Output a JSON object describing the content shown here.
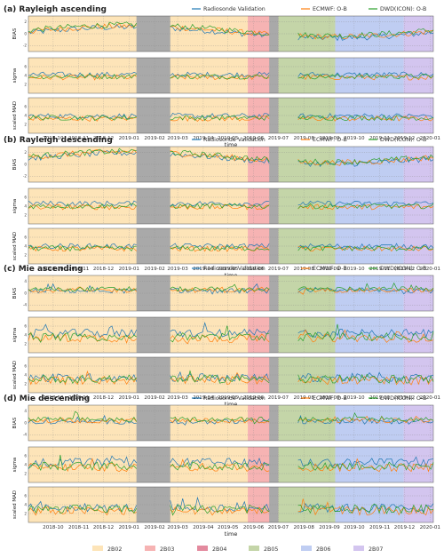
{
  "figure": {
    "panels": [
      {
        "id": "a",
        "title": "(a) Rayleigh ascending"
      },
      {
        "id": "b",
        "title": "(b) Rayleigh descending"
      },
      {
        "id": "c",
        "title": "(c) Mie ascending"
      },
      {
        "id": "d",
        "title": "(d) Mie descending"
      }
    ],
    "series_legend": [
      {
        "name": "Radiosonde Validation",
        "color": "#1f77b4"
      },
      {
        "name": "ECMWF: O-B",
        "color": "#ff7f0e"
      },
      {
        "name": "DWD(ICON): O-B",
        "color": "#2ca02c"
      }
    ],
    "phases": [
      {
        "name": "2B02",
        "start": "2018-09-01",
        "end": "2019-05-25",
        "color": "#fde4b8"
      },
      {
        "name": "2B03",
        "start": "2019-05-25",
        "end": "2019-06-20",
        "color": "#f6b3b3"
      },
      {
        "name": "2B04",
        "start": "2019-06-20",
        "end": "2019-07-01",
        "color": "#e38a9e"
      },
      {
        "name": "2B05",
        "start": "2019-07-01",
        "end": "2019-09-08",
        "color": "#c4d5a8"
      },
      {
        "name": "2B06",
        "start": "2019-09-08",
        "end": "2019-11-30",
        "color": "#bfcdf2"
      },
      {
        "name": "2B07",
        "start": "2019-11-30",
        "end": "2020-01-05",
        "color": "#d3c5ef"
      }
    ],
    "gaps": [
      {
        "start": "2019-01-10",
        "end": "2019-02-20"
      },
      {
        "start": "2019-06-20",
        "end": "2019-07-01"
      }
    ],
    "x_axis": {
      "label": "time",
      "ticks": [
        "2018-10",
        "2018-11",
        "2018-12",
        "2019-01",
        "2019-02",
        "2019-03",
        "2019-04",
        "2019-05",
        "2019-06",
        "2019-07",
        "2019-08",
        "2019-09",
        "2019-10",
        "2019-11",
        "2019-12",
        "2020-01"
      ]
    },
    "sub_axes": [
      {
        "label": "BIAS"
      },
      {
        "label": "sigma"
      },
      {
        "label": "scaled MAD"
      }
    ]
  },
  "chart_data": [
    {
      "type": "line",
      "title": "(a) Rayleigh ascending",
      "xlabel": "time",
      "sublabels": [
        "BIAS",
        "sigma",
        "scaled MAD"
      ],
      "ylims": [
        [
          -3,
          3
        ],
        [
          0,
          8
        ],
        [
          0,
          8
        ]
      ],
      "yticks": [
        [
          -2,
          0,
          2
        ],
        [
          2,
          4,
          6
        ],
        [
          2,
          4,
          6
        ]
      ],
      "baselines": [
        [
          0.2,
          0.4,
          0.6
        ],
        [
          4.2,
          3.6,
          3.8
        ],
        [
          3.9,
          3.3,
          3.5
        ]
      ],
      "series": [
        "Radiosonde Validation",
        "ECMWF: O-B",
        "DWD(ICON): O-B"
      ]
    },
    {
      "type": "line",
      "title": "(b) Rayleigh descending",
      "xlabel": "time",
      "sublabels": [
        "BIAS",
        "sigma",
        "scaled MAD"
      ],
      "ylims": [
        [
          -3,
          3
        ],
        [
          0,
          8
        ],
        [
          0,
          8
        ]
      ],
      "yticks": [
        [
          -2,
          0,
          2
        ],
        [
          2,
          4,
          6
        ],
        [
          2,
          4,
          6
        ]
      ],
      "baselines": [
        [
          1.0,
          1.2,
          1.3
        ],
        [
          4.6,
          3.8,
          4.0
        ],
        [
          4.0,
          3.4,
          3.5
        ]
      ],
      "series": [
        "Radiosonde Validation",
        "ECMWF: O-B",
        "DWD(ICON): O-B"
      ]
    },
    {
      "type": "line",
      "title": "(c) Mie ascending",
      "xlabel": "time",
      "sublabels": [
        "BIAS",
        "sigma",
        "scaled MAD"
      ],
      "ylims": [
        [
          -6,
          6
        ],
        [
          0,
          8
        ],
        [
          0,
          8
        ]
      ],
      "yticks": [
        [
          -4,
          0,
          4
        ],
        [
          2,
          4,
          6
        ],
        [
          2,
          4,
          6
        ]
      ],
      "baselines": [
        [
          0.8,
          1.0,
          1.4
        ],
        [
          4.4,
          3.3,
          3.6
        ],
        [
          3.4,
          2.8,
          3.1
        ]
      ],
      "series": [
        "Radiosonde Validation",
        "ECMWF: O-B",
        "DWD(ICON): O-B"
      ]
    },
    {
      "type": "line",
      "title": "(d) Mie descending",
      "xlabel": "time",
      "sublabels": [
        "BIAS",
        "sigma",
        "scaled MAD"
      ],
      "ylims": [
        [
          -6,
          6
        ],
        [
          0,
          8
        ],
        [
          0,
          8
        ]
      ],
      "yticks": [
        [
          -4,
          0,
          4
        ],
        [
          2,
          4,
          6
        ],
        [
          2,
          4,
          6
        ]
      ],
      "baselines": [
        [
          0.4,
          0.8,
          1.2
        ],
        [
          4.5,
          3.4,
          3.7
        ],
        [
          3.3,
          2.6,
          3.0
        ]
      ],
      "series": [
        "Radiosonde Validation",
        "ECMWF: O-B",
        "DWD(ICON): O-B"
      ]
    }
  ]
}
